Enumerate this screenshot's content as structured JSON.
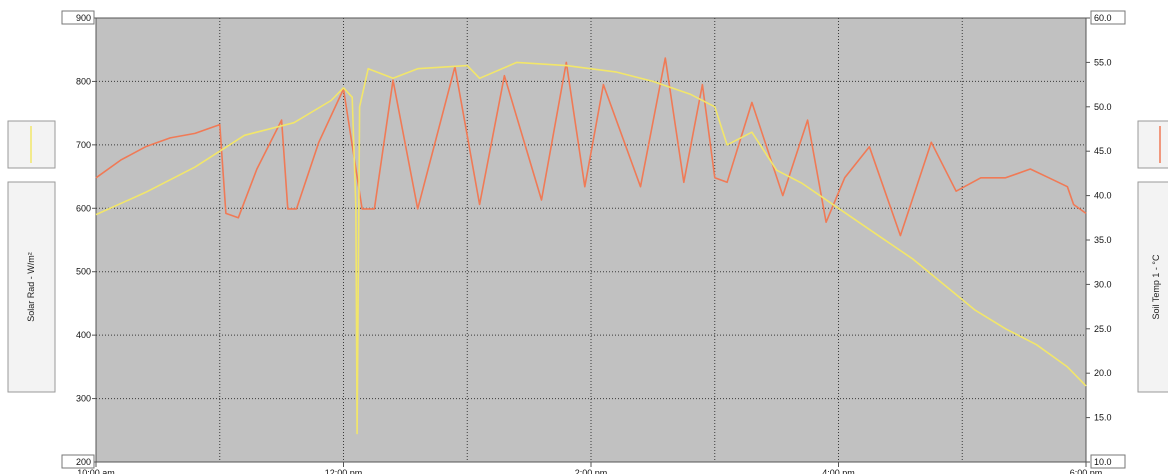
{
  "chart_data": {
    "type": "line",
    "x_ticks": [
      "10:00 am",
      "12:00 pm",
      "2:00 pm",
      "4:00 pm",
      "6:00 pm"
    ],
    "x_range_hours": [
      10,
      18
    ],
    "y_left": {
      "label": "Solar Rad - W/m²",
      "ylim": [
        200,
        900
      ],
      "ticks": [
        "200",
        "300",
        "400",
        "500",
        "600",
        "700",
        "800",
        "900"
      ]
    },
    "y_right": {
      "label": "Soil Temp 1 - °C",
      "ylim": [
        10.0,
        60.0
      ],
      "ticks": [
        "10.0",
        "15.0",
        "20.0",
        "25.0",
        "30.0",
        "35.0",
        "40.0",
        "45.0",
        "50.0",
        "55.0",
        "60.0"
      ]
    },
    "grid": true,
    "series": [
      {
        "axis": "right",
        "color": "#f07a56",
        "x": [
          10.0,
          10.2,
          10.4,
          10.6,
          10.8,
          11.0,
          11.05,
          11.15,
          11.3,
          11.5,
          11.55,
          11.62,
          11.8,
          12.0,
          12.15,
          12.25,
          12.4,
          12.6,
          12.9,
          13.1,
          13.3,
          13.6,
          13.8,
          13.95,
          14.1,
          14.4,
          14.6,
          14.75,
          14.9,
          15.0,
          15.1,
          15.3,
          15.55,
          15.75,
          15.9,
          16.05,
          16.25,
          16.5,
          16.75,
          16.95,
          17.15,
          17.35,
          17.55,
          17.7,
          17.85,
          17.9,
          18.0
        ],
        "values": [
          42.0,
          44.0,
          45.5,
          46.5,
          47.0,
          48.0,
          38.0,
          37.5,
          43.0,
          48.5,
          38.5,
          38.5,
          46.0,
          52.0,
          38.5,
          38.5,
          53.0,
          38.5,
          54.5,
          39.0,
          53.5,
          39.5,
          55.0,
          41.0,
          52.5,
          41.0,
          55.5,
          41.5,
          52.5,
          42.0,
          41.5,
          50.5,
          40.0,
          48.5,
          37.0,
          42.0,
          45.5,
          35.5,
          46.0,
          40.5,
          42.0,
          42.0,
          43.0,
          42.0,
          41.0,
          39.0,
          38.0
        ]
      },
      {
        "axis": "left",
        "color": "#f2e66a",
        "x": [
          10.0,
          10.4,
          10.8,
          11.2,
          11.6,
          11.9,
          12.0,
          12.07,
          12.1,
          12.11,
          12.13,
          12.2,
          12.4,
          12.6,
          13.0,
          13.1,
          13.4,
          13.8,
          14.2,
          14.5,
          14.8,
          15.0,
          15.1,
          15.3,
          15.5,
          15.7,
          16.0,
          16.3,
          16.6,
          16.85,
          17.1,
          17.35,
          17.6,
          17.85,
          18.0
        ],
        "values": [
          590,
          625,
          665,
          715,
          735,
          770,
          790,
          775,
          600,
          245,
          760,
          820,
          805,
          820,
          825,
          805,
          830,
          825,
          815,
          800,
          780,
          760,
          700,
          720,
          660,
          640,
          600,
          560,
          520,
          480,
          440,
          410,
          385,
          350,
          320
        ]
      }
    ]
  }
}
